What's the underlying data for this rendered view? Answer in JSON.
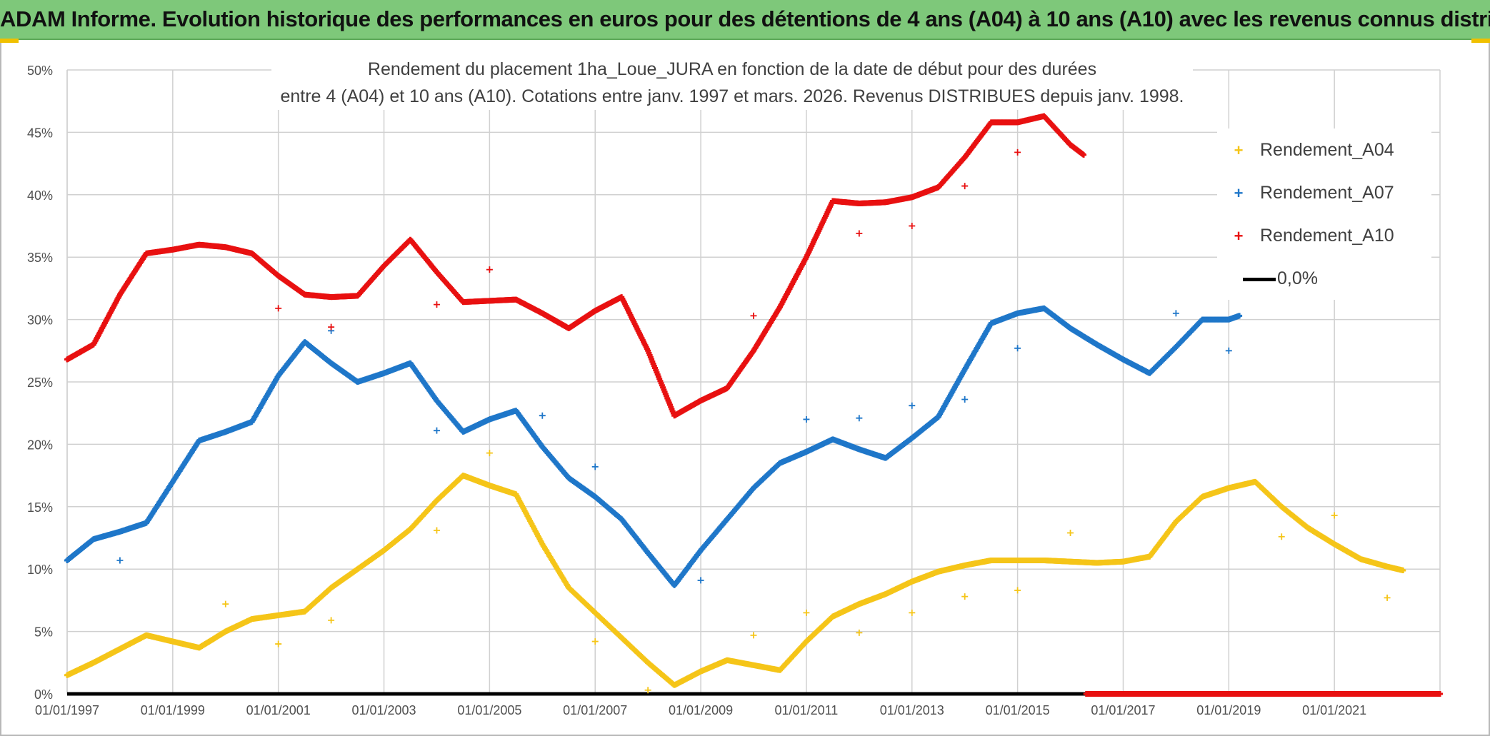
{
  "header": {
    "title": "ADAM Informe. Evolution historique des performances en euros pour des détentions de 4 ans (A04) à 10 ans (A10) avec les revenus connus distribués"
  },
  "chart_data": {
    "type": "scatter",
    "title_line1": "Rendement du placement 1ha_Loue_JURA en fonction de la date de début pour des durées",
    "title_line2": "entre 4 (A04) et 10 ans (A10). Cotations entre janv. 1997 et mars. 2026. Revenus DISTRIBUES depuis janv. 1998.",
    "x_range": [
      1997.0,
      2023.0
    ],
    "x_ticks": [
      1997,
      1999,
      2001,
      2003,
      2005,
      2007,
      2009,
      2011,
      2013,
      2015,
      2017,
      2019,
      2021
    ],
    "x_tick_labels": [
      "01/01/1997",
      "01/01/1999",
      "01/01/2001",
      "01/01/2003",
      "01/01/2005",
      "01/01/2007",
      "01/01/2009",
      "01/01/2011",
      "01/01/2013",
      "01/01/2015",
      "01/01/2017",
      "01/01/2019",
      "01/01/2021"
    ],
    "y_range": [
      0,
      50
    ],
    "y_ticks": [
      0,
      5,
      10,
      15,
      20,
      25,
      30,
      35,
      40,
      45,
      50
    ],
    "y_tick_labels": [
      "0%",
      "5%",
      "10%",
      "15%",
      "20%",
      "25%",
      "30%",
      "35%",
      "40%",
      "45%",
      "50%"
    ],
    "grid": true,
    "legend_position": "right",
    "series": [
      {
        "name": "Rendement_A04",
        "color": "#f5c518",
        "points": [
          [
            1997.0,
            1.5
          ],
          [
            1997.5,
            2.5
          ],
          [
            1998.0,
            3.6
          ],
          [
            1998.5,
            4.7
          ],
          [
            1999.0,
            4.2
          ],
          [
            1999.5,
            3.7
          ],
          [
            2000.0,
            5.0
          ],
          [
            2000.5,
            6.0
          ],
          [
            2001.0,
            6.3
          ],
          [
            2001.5,
            6.6
          ],
          [
            2002.0,
            8.5
          ],
          [
            2002.5,
            10.0
          ],
          [
            2003.0,
            11.5
          ],
          [
            2003.5,
            13.2
          ],
          [
            2004.0,
            15.5
          ],
          [
            2004.5,
            17.5
          ],
          [
            2005.0,
            16.7
          ],
          [
            2005.5,
            16.0
          ],
          [
            2006.0,
            12.0
          ],
          [
            2006.5,
            8.5
          ],
          [
            2007.0,
            6.5
          ],
          [
            2007.5,
            4.5
          ],
          [
            2008.0,
            2.5
          ],
          [
            2008.5,
            0.7
          ],
          [
            2009.0,
            1.8
          ],
          [
            2009.5,
            2.7
          ],
          [
            2010.0,
            2.3
          ],
          [
            2010.5,
            1.9
          ],
          [
            2011.0,
            4.2
          ],
          [
            2011.5,
            6.2
          ],
          [
            2012.0,
            7.2
          ],
          [
            2012.5,
            8.0
          ],
          [
            2013.0,
            9.0
          ],
          [
            2013.5,
            9.8
          ],
          [
            2014.0,
            10.3
          ],
          [
            2014.5,
            10.7
          ],
          [
            2015.0,
            10.7
          ],
          [
            2015.5,
            10.7
          ],
          [
            2016.0,
            10.6
          ],
          [
            2016.5,
            10.5
          ],
          [
            2017.0,
            10.6
          ],
          [
            2017.5,
            11.0
          ],
          [
            2018.0,
            13.8
          ],
          [
            2018.5,
            15.8
          ],
          [
            2019.0,
            16.5
          ],
          [
            2019.5,
            17.0
          ],
          [
            2020.0,
            15.0
          ],
          [
            2020.5,
            13.3
          ],
          [
            2021.0,
            12.0
          ],
          [
            2021.5,
            10.8
          ],
          [
            2022.0,
            10.2
          ],
          [
            2022.3,
            9.9
          ]
        ],
        "outliers": [
          [
            2000.0,
            7.2
          ],
          [
            2001.0,
            4.0
          ],
          [
            2002.0,
            5.9
          ],
          [
            2004.0,
            13.1
          ],
          [
            2005.0,
            19.3
          ],
          [
            2007.0,
            4.2
          ],
          [
            2008.0,
            0.3
          ],
          [
            2010.0,
            4.7
          ],
          [
            2011.0,
            6.5
          ],
          [
            2012.0,
            4.9
          ],
          [
            2013.0,
            6.5
          ],
          [
            2014.0,
            7.8
          ],
          [
            2015.0,
            8.3
          ],
          [
            2016.0,
            12.9
          ],
          [
            2020.0,
            12.6
          ],
          [
            2021.0,
            14.3
          ],
          [
            2022.0,
            7.7
          ]
        ]
      },
      {
        "name": "Rendement_A07",
        "color": "#1f77c9",
        "points": [
          [
            1997.0,
            10.7
          ],
          [
            1997.5,
            12.4
          ],
          [
            1998.0,
            13.0
          ],
          [
            1998.5,
            13.7
          ],
          [
            1999.0,
            17.0
          ],
          [
            1999.5,
            20.3
          ],
          [
            2000.0,
            21.0
          ],
          [
            2000.5,
            21.8
          ],
          [
            2001.0,
            25.5
          ],
          [
            2001.5,
            28.2
          ],
          [
            2002.0,
            26.5
          ],
          [
            2002.5,
            25.0
          ],
          [
            2003.0,
            25.7
          ],
          [
            2003.5,
            26.5
          ],
          [
            2004.0,
            23.5
          ],
          [
            2004.5,
            21.0
          ],
          [
            2005.0,
            22.0
          ],
          [
            2005.5,
            22.7
          ],
          [
            2006.0,
            19.8
          ],
          [
            2006.5,
            17.3
          ],
          [
            2007.0,
            15.8
          ],
          [
            2007.5,
            14.0
          ],
          [
            2008.0,
            11.3
          ],
          [
            2008.5,
            8.7
          ],
          [
            2009.0,
            11.5
          ],
          [
            2009.5,
            14.0
          ],
          [
            2010.0,
            16.5
          ],
          [
            2010.5,
            18.5
          ],
          [
            2011.0,
            19.4
          ],
          [
            2011.5,
            20.4
          ],
          [
            2012.0,
            19.6
          ],
          [
            2012.5,
            18.9
          ],
          [
            2013.0,
            20.5
          ],
          [
            2013.5,
            22.2
          ],
          [
            2014.0,
            26.0
          ],
          [
            2014.5,
            29.7
          ],
          [
            2015.0,
            30.5
          ],
          [
            2015.5,
            30.9
          ],
          [
            2016.0,
            29.3
          ],
          [
            2016.5,
            28.0
          ],
          [
            2017.0,
            26.8
          ],
          [
            2017.5,
            25.7
          ],
          [
            2018.0,
            27.8
          ],
          [
            2018.5,
            30.0
          ],
          [
            2019.0,
            30.0
          ],
          [
            2019.2,
            30.3
          ]
        ],
        "outliers": [
          [
            1998.0,
            10.7
          ],
          [
            2002.0,
            29.1
          ],
          [
            2004.0,
            21.1
          ],
          [
            2006.0,
            22.3
          ],
          [
            2007.0,
            18.2
          ],
          [
            2009.0,
            9.1
          ],
          [
            2011.0,
            22.0
          ],
          [
            2012.0,
            22.1
          ],
          [
            2013.0,
            23.1
          ],
          [
            2014.0,
            23.6
          ],
          [
            2015.0,
            27.7
          ],
          [
            2018.0,
            30.5
          ],
          [
            2019.0,
            27.5
          ]
        ]
      },
      {
        "name": "Rendement_A10",
        "color": "#e81010",
        "points": [
          [
            1997.0,
            26.8
          ],
          [
            1997.5,
            28.0
          ],
          [
            1998.0,
            32.0
          ],
          [
            1998.5,
            35.3
          ],
          [
            1999.0,
            35.6
          ],
          [
            1999.5,
            36.0
          ],
          [
            2000.0,
            35.8
          ],
          [
            2000.5,
            35.3
          ],
          [
            2001.0,
            33.5
          ],
          [
            2001.5,
            32.0
          ],
          [
            2002.0,
            31.8
          ],
          [
            2002.5,
            31.9
          ],
          [
            2003.0,
            34.3
          ],
          [
            2003.5,
            36.4
          ],
          [
            2004.0,
            33.8
          ],
          [
            2004.5,
            31.4
          ],
          [
            2005.0,
            31.5
          ],
          [
            2005.5,
            31.6
          ],
          [
            2006.0,
            30.5
          ],
          [
            2006.5,
            29.3
          ],
          [
            2007.0,
            30.7
          ],
          [
            2007.5,
            31.8
          ],
          [
            2008.0,
            27.5
          ],
          [
            2008.5,
            22.3
          ],
          [
            2009.0,
            23.5
          ],
          [
            2009.5,
            24.5
          ],
          [
            2010.0,
            27.5
          ],
          [
            2010.5,
            31.0
          ],
          [
            2011.0,
            35.0
          ],
          [
            2011.5,
            39.5
          ],
          [
            2012.0,
            39.3
          ],
          [
            2012.5,
            39.4
          ],
          [
            2013.0,
            39.8
          ],
          [
            2013.5,
            40.6
          ],
          [
            2014.0,
            43.0
          ],
          [
            2014.5,
            45.8
          ],
          [
            2015.0,
            45.8
          ],
          [
            2015.5,
            46.3
          ],
          [
            2016.0,
            44.0
          ],
          [
            2016.25,
            43.2
          ]
        ],
        "outliers": [
          [
            2001.0,
            30.9
          ],
          [
            2002.0,
            29.4
          ],
          [
            2004.0,
            31.2
          ],
          [
            2005.0,
            34.0
          ],
          [
            2010.0,
            30.3
          ],
          [
            2012.0,
            36.9
          ],
          [
            2013.0,
            37.5
          ],
          [
            2014.0,
            40.7
          ],
          [
            2015.0,
            43.4
          ]
        ],
        "zero_tail": [
          2016.3,
          2023.0
        ]
      },
      {
        "name": "0,0%",
        "color": "#000000",
        "zero_line": [
          1997.0,
          2016.3
        ]
      }
    ]
  }
}
